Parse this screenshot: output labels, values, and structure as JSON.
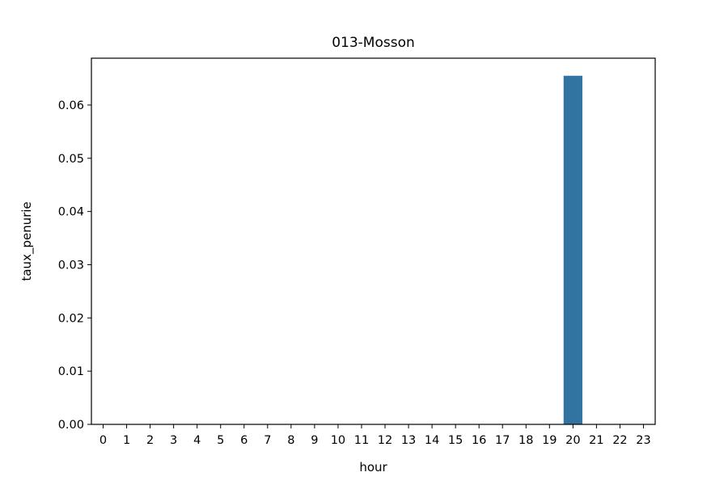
{
  "chart_data": {
    "type": "bar",
    "title": "013-Mosson",
    "xlabel": "hour",
    "ylabel": "taux_penurie",
    "categories": [
      "0",
      "1",
      "2",
      "3",
      "4",
      "5",
      "6",
      "7",
      "8",
      "9",
      "10",
      "11",
      "12",
      "13",
      "14",
      "15",
      "16",
      "17",
      "18",
      "19",
      "20",
      "21",
      "22",
      "23"
    ],
    "values": [
      0,
      0,
      0,
      0,
      0,
      0,
      0,
      0,
      0,
      0,
      0,
      0,
      0,
      0,
      0,
      0,
      0,
      0,
      0,
      0,
      0.0655,
      0,
      0,
      0
    ],
    "ylim": [
      0,
      0.0688
    ],
    "yticks": [
      "0.00",
      "0.01",
      "0.02",
      "0.03",
      "0.04",
      "0.05",
      "0.06"
    ],
    "bar_color": "#3274a1",
    "grid": false,
    "legend": "none"
  }
}
